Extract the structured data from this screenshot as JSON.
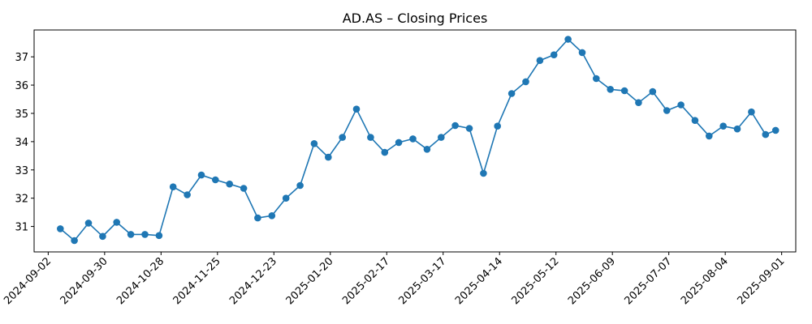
{
  "chart_data": {
    "type": "line",
    "title": "AD.AS – Closing Prices",
    "xlabel": "",
    "ylabel": "",
    "ylim": [
      30.1,
      37.95
    ],
    "xlim": [
      "2024-08-26",
      "2025-09-08"
    ],
    "grid": false,
    "legend": "none",
    "line_color": "#1f77b4",
    "x_ticks": [
      "2024-09-02",
      "2024-09-30",
      "2024-10-28",
      "2024-11-25",
      "2024-12-23",
      "2025-01-20",
      "2025-02-17",
      "2025-03-17",
      "2025-04-14",
      "2025-05-12",
      "2025-06-09",
      "2025-07-07",
      "2025-08-04",
      "2025-09-01"
    ],
    "y_ticks": [
      31,
      32,
      33,
      34,
      35,
      36,
      37
    ],
    "series": [
      {
        "x": [
          "2024-09-08",
          "2024-09-15",
          "2024-09-22",
          "2024-09-29",
          "2024-10-06",
          "2024-10-13",
          "2024-10-20",
          "2024-10-27",
          "2024-11-03",
          "2024-11-10",
          "2024-11-17",
          "2024-11-24",
          "2024-12-01",
          "2024-12-08",
          "2024-12-15",
          "2024-12-22",
          "2024-12-29",
          "2025-01-05",
          "2025-01-12",
          "2025-01-19",
          "2025-01-26",
          "2025-02-02",
          "2025-02-09",
          "2025-02-16",
          "2025-02-23",
          "2025-03-02",
          "2025-03-09",
          "2025-03-16",
          "2025-03-23",
          "2025-03-30",
          "2025-04-06",
          "2025-04-13",
          "2025-04-20",
          "2025-04-27",
          "2025-05-04",
          "2025-05-11",
          "2025-05-18",
          "2025-05-25",
          "2025-06-01",
          "2025-06-08",
          "2025-06-15",
          "2025-06-22",
          "2025-06-29",
          "2025-07-06",
          "2025-07-13",
          "2025-07-20",
          "2025-07-27",
          "2025-08-03",
          "2025-08-10",
          "2025-08-17",
          "2025-08-24",
          "2025-08-29"
        ],
        "values": [
          30.92,
          30.5,
          31.12,
          30.65,
          31.15,
          30.72,
          30.72,
          30.68,
          32.4,
          32.12,
          32.82,
          32.65,
          32.5,
          32.35,
          31.3,
          31.38,
          32.0,
          32.45,
          33.93,
          33.45,
          34.15,
          35.15,
          34.15,
          33.62,
          33.97,
          34.1,
          33.73,
          34.15,
          34.57,
          34.47,
          32.88,
          34.55,
          35.7,
          36.12,
          36.87,
          37.07,
          37.62,
          37.15,
          36.23,
          35.85,
          35.8,
          35.38,
          35.77,
          35.1,
          35.3,
          34.75,
          34.2,
          34.55,
          34.45,
          35.05,
          34.25,
          34.4
        ]
      }
    ]
  }
}
